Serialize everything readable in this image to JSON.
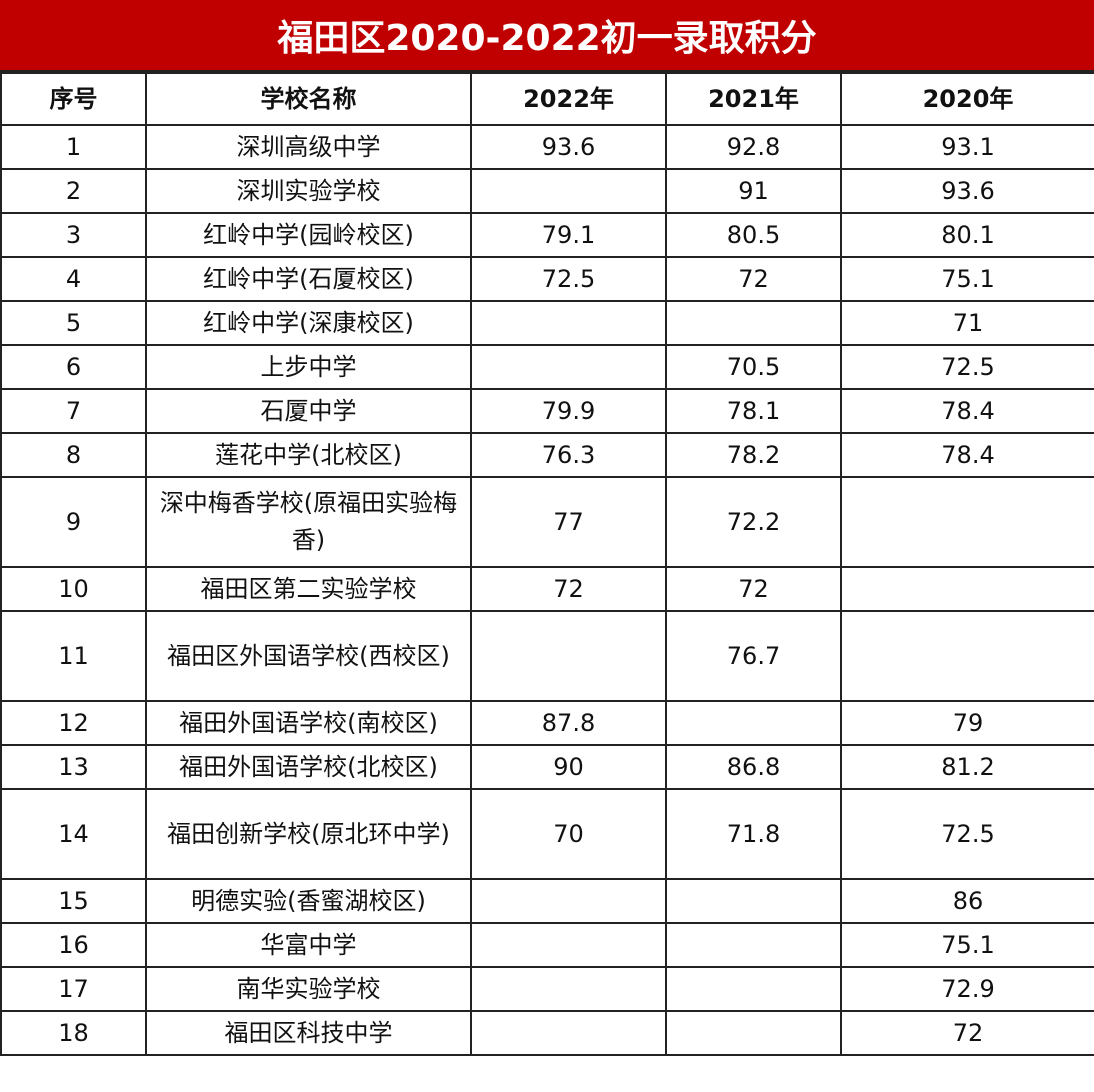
{
  "title": "福田区2020-2022初一录取积分",
  "colors": {
    "title_bg": "#c00000",
    "title_text": "#ffffff"
  },
  "headers": [
    "序号",
    "学校名称",
    "2022年",
    "2021年",
    "2020年"
  ],
  "rows": [
    [
      "1",
      "深圳高级中学",
      "93.6",
      "92.8",
      "93.1"
    ],
    [
      "2",
      "深圳实验学校",
      "",
      "91",
      "93.6"
    ],
    [
      "3",
      "红岭中学(园岭校区)",
      "79.1",
      "80.5",
      "80.1"
    ],
    [
      "4",
      "红岭中学(石厦校区)",
      "72.5",
      "72",
      "75.1"
    ],
    [
      "5",
      "红岭中学(深康校区)",
      "",
      "",
      "71"
    ],
    [
      "6",
      "上步中学",
      "",
      "70.5",
      "72.5"
    ],
    [
      "7",
      "石厦中学",
      "79.9",
      "78.1",
      "78.4"
    ],
    [
      "8",
      "莲花中学(北校区)",
      "76.3",
      "78.2",
      "78.4"
    ],
    [
      "9",
      "深中梅香学校(原福田实验梅香)",
      "77",
      "72.2",
      ""
    ],
    [
      "10",
      "福田区第二实验学校",
      "72",
      "72",
      ""
    ],
    [
      "11",
      "福田区外国语学校(西校区)",
      "",
      "76.7",
      ""
    ],
    [
      "12",
      "福田外国语学校(南校区)",
      "87.8",
      "",
      "79"
    ],
    [
      "13",
      "福田外国语学校(北校区)",
      "90",
      "86.8",
      "81.2"
    ],
    [
      "14",
      "福田创新学校(原北环中学)",
      "70",
      "71.8",
      "72.5"
    ],
    [
      "15",
      "明德实验(香蜜湖校区)",
      "",
      "",
      "86"
    ],
    [
      "16",
      "华富中学",
      "",
      "",
      "75.1"
    ],
    [
      "17",
      "南华实验学校",
      "",
      "",
      "72.9"
    ],
    [
      "18",
      "福田区科技中学",
      "",
      "",
      "72"
    ]
  ]
}
